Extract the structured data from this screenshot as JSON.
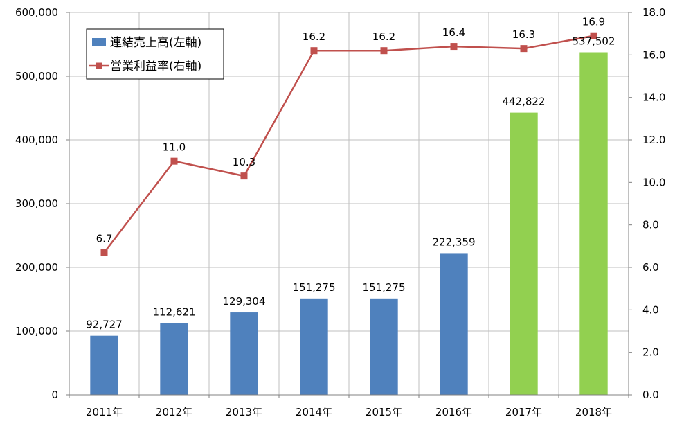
{
  "chart_data": {
    "type": "bar",
    "categories": [
      "2011年",
      "2012年",
      "2013年",
      "2014年",
      "2015年",
      "2016年",
      "2017年",
      "2018年"
    ],
    "series": [
      {
        "name": "連結売上高(左軸)",
        "kind": "bar",
        "axis": "left",
        "values": [
          92727,
          112621,
          129304,
          151275,
          151275,
          222359,
          442822,
          537502
        ],
        "labels": [
          "92,727",
          "112,621",
          "129,304",
          "151,275",
          "151,275",
          "222,359",
          "442,822",
          "537,502"
        ],
        "color": "#4F81BD",
        "highlight_color": "#92D050",
        "highlight_categories": [
          "2017年",
          "2018年"
        ]
      },
      {
        "name": "営業利益率(右軸)",
        "kind": "line",
        "axis": "right",
        "values": [
          6.7,
          11.0,
          10.3,
          16.2,
          16.2,
          16.4,
          16.3,
          16.9
        ],
        "labels": [
          "6.7",
          "11.0",
          "10.3",
          "16.2",
          "16.2",
          "16.4",
          "16.3",
          "16.9"
        ],
        "color": "#C0504D",
        "marker": "square"
      }
    ],
    "y_left": {
      "min": 0,
      "max": 600000,
      "ticks": [
        0,
        100000,
        200000,
        300000,
        400000,
        500000,
        600000
      ],
      "tick_labels": [
        "0",
        "100,000",
        "200,000",
        "300,000",
        "400,000",
        "500,000",
        "600,000"
      ]
    },
    "y_right": {
      "min": 0,
      "max": 18,
      "ticks": [
        0,
        2,
        4,
        6,
        8,
        10,
        12,
        14,
        16,
        18
      ],
      "tick_labels": [
        "0.0",
        "2.0",
        "4.0",
        "6.0",
        "8.0",
        "10.0",
        "12.0",
        "14.0",
        "16.0",
        "18.0"
      ]
    },
    "grid": true,
    "legend_position": "top-left",
    "title": "",
    "xlabel": "",
    "ylabel": ""
  }
}
